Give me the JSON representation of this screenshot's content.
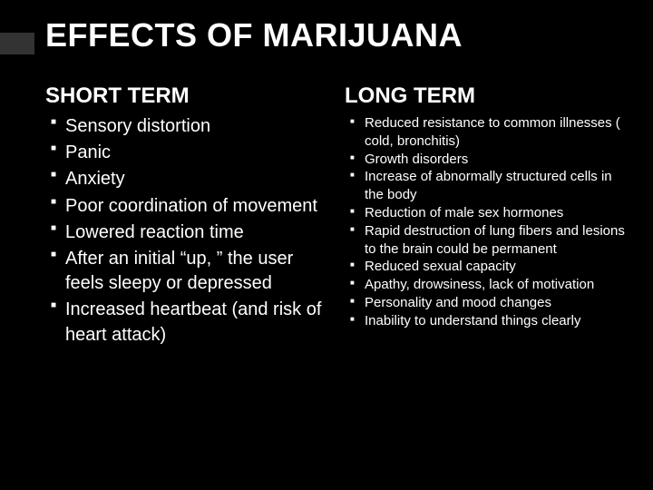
{
  "title": "EFFECTS OF MARIJUANA",
  "left": {
    "heading": "SHORT TERM",
    "items": [
      "Sensory distortion",
      "Panic",
      "Anxiety",
      "Poor coordination of movement",
      "Lowered reaction time",
      "After an initial “up, ” the user feels sleepy or depressed",
      "Increased heartbeat (and risk of heart attack)"
    ]
  },
  "right": {
    "heading": "LONG TERM",
    "items": [
      "Reduced resistance to common illnesses ( cold, bronchitis)",
      "Growth disorders",
      "Increase of abnormally structured cells in the body",
      "Reduction of male sex hormones",
      "Rapid destruction of lung fibers and lesions to the brain could be permanent",
      "Reduced sexual capacity",
      "Apathy, drowsiness, lack of motivation",
      "Personality and mood changes",
      "Inability to understand things clearly"
    ]
  },
  "colors": {
    "background": "#000000",
    "text": "#ffffff",
    "ribbon": "#333333"
  }
}
